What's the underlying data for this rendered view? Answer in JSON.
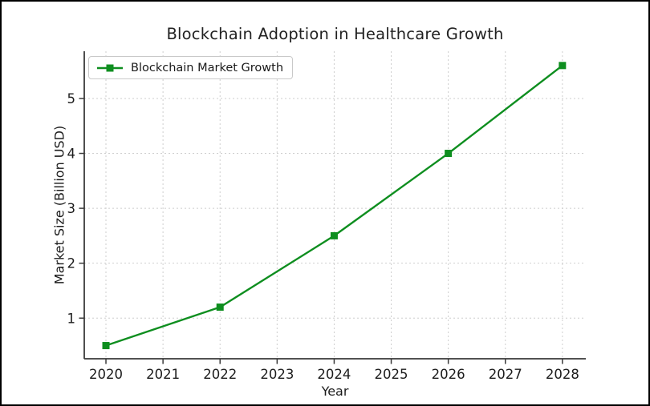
{
  "window": {
    "frame_color": "#000000",
    "background_color": "#ffffff"
  },
  "colors": {
    "series_green": "#0e8e1f",
    "grid": "#cecece",
    "axis_spine": "#3a3a3a",
    "tick_text": "#1c1c1c",
    "legend_border": "#c9c9c9"
  },
  "legend": {
    "label": "Blockchain Market Growth",
    "position": "upper left",
    "marker": "square"
  },
  "chart_data": {
    "type": "line",
    "title": "Blockchain Adoption in Healthcare Growth",
    "xlabel": "Year",
    "ylabel": "Market Size (Billion USD)",
    "x": [
      2020,
      2022,
      2024,
      2026,
      2028
    ],
    "series": [
      {
        "name": "Blockchain Market Growth",
        "values": [
          0.5,
          1.2,
          2.5,
          4.0,
          5.6
        ],
        "color": "#0e8e1f",
        "marker": "square",
        "line_style": "solid"
      }
    ],
    "x_ticks": [
      2020,
      2021,
      2022,
      2023,
      2024,
      2025,
      2026,
      2027,
      2028
    ],
    "y_ticks": [
      1,
      2,
      3,
      4,
      5
    ],
    "xlim": [
      2019.62,
      2028.41
    ],
    "ylim": [
      0.26,
      5.86
    ],
    "grid": true,
    "grid_style": "dashed",
    "spines": [
      "left",
      "bottom"
    ],
    "legend_position": "upper left"
  }
}
